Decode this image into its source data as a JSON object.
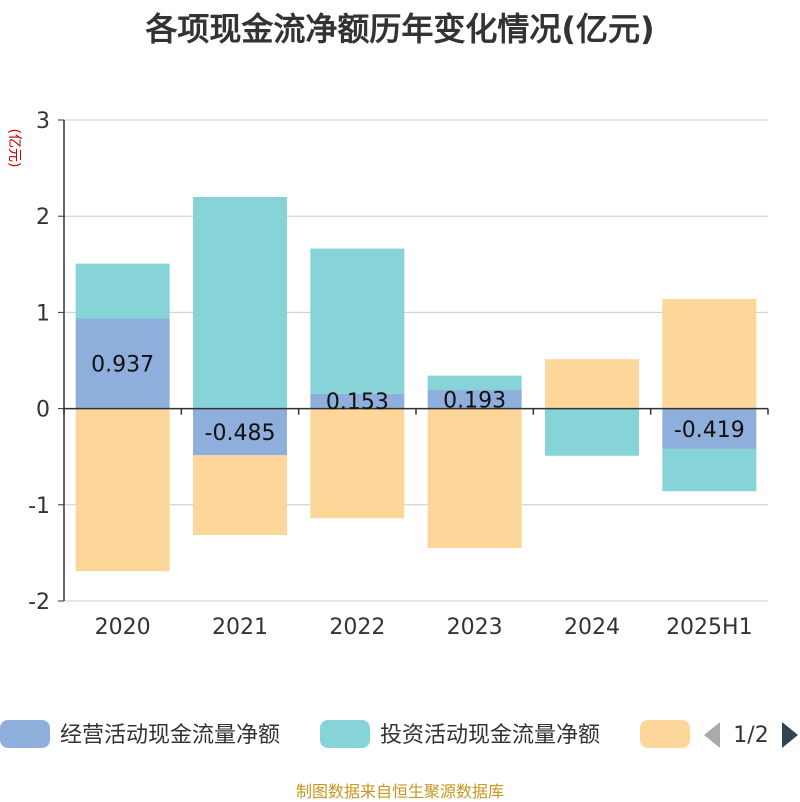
{
  "chart_data": {
    "type": "bar",
    "stacked": true,
    "title": "各项现金流净额历年变化情况(亿元)",
    "unit_label": "(亿元)",
    "categories": [
      "2020",
      "2021",
      "2022",
      "2023",
      "2024",
      "2025H1"
    ],
    "ylim": [
      -2,
      3
    ],
    "yticks": [
      -2,
      -1,
      0,
      1,
      2,
      3
    ],
    "grid": true,
    "series": [
      {
        "name": "经营活动现金流量净额",
        "color": "#8eaedb",
        "values": [
          0.937,
          -0.485,
          0.153,
          0.193,
          0.004,
          -0.419
        ],
        "labels": [
          "0.937",
          "-0.485",
          "0.153",
          "0.193",
          "",
          "-0.419"
        ]
      },
      {
        "name": "投资活动现金流量净额",
        "color": "#86d4d8",
        "values": [
          0.57,
          2.2,
          1.51,
          0.15,
          -0.49,
          -0.44
        ]
      },
      {
        "name": "",
        "color": "#fdd699",
        "values": [
          -1.69,
          -0.83,
          -1.14,
          -1.45,
          0.51,
          1.14
        ]
      }
    ],
    "legend": {
      "position": "bottom",
      "page": "1/2"
    }
  },
  "source_note": "制图数据来自恒生聚源数据库"
}
